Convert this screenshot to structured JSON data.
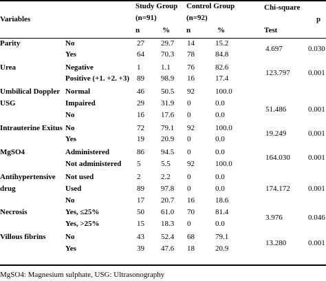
{
  "header": {
    "variables": "Variables",
    "study_group": "Study Group",
    "study_n": "(n=91)",
    "control_group": "Control Group",
    "control_n": "(n=92)",
    "chi_square": "Chi-square",
    "test": "Test",
    "p": "p",
    "n": "n",
    "pct": "%"
  },
  "rows": [
    {
      "variable": "Parity",
      "category": "No",
      "sn": "27",
      "sp": "29.7",
      "cn": "14",
      "cp": "15.2"
    },
    {
      "variable": "",
      "category": "Yes",
      "sn": "64",
      "sp": "70.3",
      "cn": "78",
      "cp": "84.8"
    },
    {
      "variable": "Urea",
      "category": "Negative",
      "sn": "1",
      "sp": "1.1",
      "cn": "76",
      "cp": "82.6"
    },
    {
      "variable": "",
      "category": "Positive (+1. +2. +3)",
      "sn": "89",
      "sp": "98.9",
      "cn": "16",
      "cp": "17.4"
    },
    {
      "variable": "Umbilical Doppler",
      "category": "Normal",
      "sn": "46",
      "sp": "50.5",
      "cn": "92",
      "cp": "100.0"
    },
    {
      "variable": "USG",
      "category": "Impaired",
      "sn": "29",
      "sp": "31.9",
      "cn": "0",
      "cp": "0.0"
    },
    {
      "variable": "",
      "category": "No",
      "sn": "16",
      "sp": "17.6",
      "cn": "0",
      "cp": "0.0"
    },
    {
      "variable": "Intrauterine Exitus",
      "category": "No",
      "sn": "72",
      "sp": "79.1",
      "cn": "92",
      "cp": "100.0"
    },
    {
      "variable": "",
      "category": "Yes",
      "sn": "19",
      "sp": "20.9",
      "cn": "0",
      "cp": "0.0"
    },
    {
      "variable": "MgSO4",
      "category": "Administered",
      "sn": "86",
      "sp": "94.5",
      "cn": "0",
      "cp": "0.0"
    },
    {
      "variable": "",
      "category": "Not administered",
      "sn": "5",
      "sp": "5.5",
      "cn": "92",
      "cp": "100.0"
    },
    {
      "variable": "Antihypertensive",
      "category": "Not used",
      "sn": "2",
      "sp": "2.2",
      "cn": "0",
      "cp": "0.0"
    },
    {
      "variable": "drug",
      "category": "Used",
      "sn": "89",
      "sp": "97.8",
      "cn": "0",
      "cp": "0.0"
    },
    {
      "variable": "",
      "category": "No",
      "sn": "17",
      "sp": "20.7",
      "cn": "16",
      "cp": "18.6"
    },
    {
      "variable": "Necrosis",
      "category": "Yes, ≤25%",
      "sn": "50",
      "sp": "61.0",
      "cn": "70",
      "cp": "81.4"
    },
    {
      "variable": "",
      "category": "Yes, >25%",
      "sn": "15",
      "sp": "18.3",
      "cn": "0",
      "cp": "0.0"
    },
    {
      "variable": "Villous fibrins",
      "category": "No",
      "sn": "43",
      "sp": "52.4",
      "cn": "68",
      "cp": "79.1"
    },
    {
      "variable": "",
      "category": "Yes",
      "sn": "39",
      "sp": "47.6",
      "cn": "18",
      "cp": "20.9"
    }
  ],
  "tests": [
    {
      "chi": "4.697",
      "p": "0.030"
    },
    {
      "chi": "123.797",
      "p": "0.001"
    },
    {
      "chi": "51.486",
      "p": "0.001"
    },
    {
      "chi": "19.249",
      "p": "0.001"
    },
    {
      "chi": "164.030",
      "p": "0.001"
    },
    {
      "chi": "174.172",
      "p": "0.001"
    },
    {
      "chi": "3.976",
      "p": "0.046"
    },
    {
      "chi": "13.280",
      "p": "0.001"
    }
  ],
  "footnote": "MgSO4: Magnesium sulphate, USG: Ultrasonography"
}
